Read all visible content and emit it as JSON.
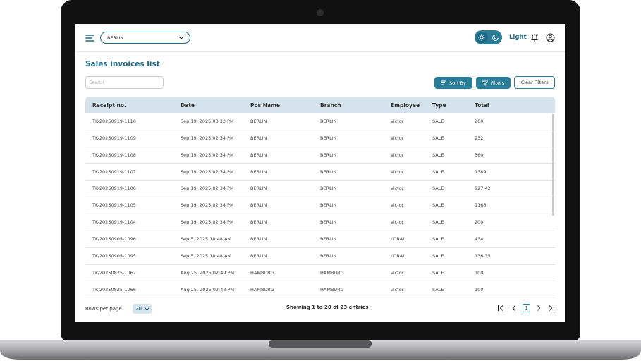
{
  "header": {
    "location": "BERLIN",
    "theme_label": "Light"
  },
  "page": {
    "title": "Sales invoices list",
    "search_placeholder": "Search"
  },
  "toolbar": {
    "sort": "Sort By",
    "filters": "Filters",
    "clear": "Clear Filters"
  },
  "table": {
    "columns": [
      "Receipt no.",
      "Date",
      "Pos Name",
      "Branch",
      "Employee",
      "Type",
      "Total"
    ],
    "rows": [
      [
        "TK-20250919-1110",
        "Sep 19, 2025 03:32 PM",
        "BERLIN",
        "BERLIN",
        "victor",
        "SALE",
        "200"
      ],
      [
        "TK-20250919-1109",
        "Sep 19, 2025 02:34 PM",
        "BERLIN",
        "BERLIN",
        "victor",
        "SALE",
        "952"
      ],
      [
        "TK-20250919-1108",
        "Sep 19, 2025 02:34 PM",
        "BERLIN",
        "BERLIN",
        "victor",
        "SALE",
        "360"
      ],
      [
        "TK-20250919-1107",
        "Sep 19, 2025 02:34 PM",
        "BERLIN",
        "BERLIN",
        "victor",
        "SALE",
        "1389"
      ],
      [
        "TK-20250919-1106",
        "Sep 19, 2025 02:34 PM",
        "BERLIN",
        "BERLIN",
        "victor",
        "SALE",
        "927.42"
      ],
      [
        "TK-20250919-1105",
        "Sep 19, 2025 02:34 PM",
        "BERLIN",
        "BERLIN",
        "victor",
        "SALE",
        "1168"
      ],
      [
        "TK-20250919-1104",
        "Sep 19, 2025 02:34 PM",
        "BERLIN",
        "BERLIN",
        "victor",
        "SALE",
        "200"
      ],
      [
        "TK-20250905-1096",
        "Sep 5, 2025 10:48 AM",
        "BERLIN",
        "BERLIN",
        "LORAL",
        "SALE",
        "434"
      ],
      [
        "TK-20250905-1095",
        "Sep 5, 2025 10:48 AM",
        "BERLIN",
        "BERLIN",
        "LORAL",
        "SALE",
        "136.35"
      ],
      [
        "TK-20250825-1067",
        "Aug 25, 2025 02:49 PM",
        "HAMBURG",
        "HAMBURG",
        "victor",
        "SALE",
        "100"
      ],
      [
        "TK-20250825-1066",
        "Aug 25, 2025 02:43 PM",
        "HAMBURG",
        "HAMBURG",
        "victor",
        "SALE",
        "100"
      ]
    ]
  },
  "footer": {
    "rows_per_page_label": "Rows per page",
    "rows_per_page": "20",
    "entries": "Showing 1 to 20 of 23 entries",
    "current_page": "1"
  }
}
